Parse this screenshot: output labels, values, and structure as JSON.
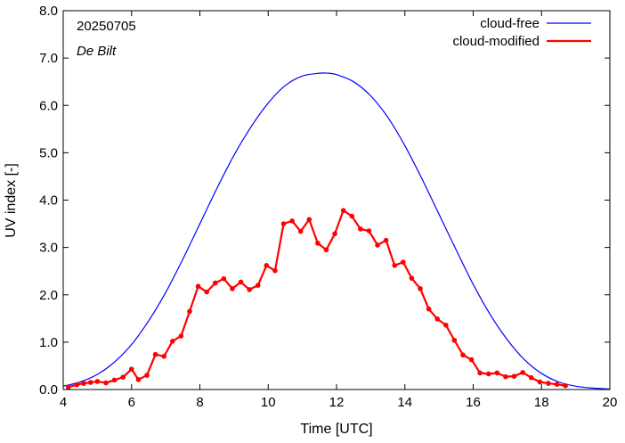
{
  "chart_data": {
    "type": "line",
    "date_label": "20250705",
    "location_label": "De Bilt",
    "xlabel": "Time  [UTC]",
    "ylabel": "UV index  [-]",
    "xlim": [
      4,
      20
    ],
    "ylim": [
      0,
      8
    ],
    "x_ticks": [
      "4",
      "6",
      "8",
      "10",
      "12",
      "14",
      "16",
      "18",
      "20"
    ],
    "y_ticks": [
      "0.0",
      "1.0",
      "2.0",
      "3.0",
      "4.0",
      "5.0",
      "6.0",
      "7.0",
      "8.0"
    ],
    "legend_position": "top-right",
    "series": [
      {
        "name": "cloud-free",
        "color": "#0000ff",
        "marker": "none",
        "x": [
          4.0,
          4.5,
          5.0,
          5.5,
          6.0,
          6.5,
          7.0,
          7.5,
          8.0,
          8.5,
          9.0,
          9.5,
          10.0,
          10.5,
          11.0,
          11.5,
          11.75,
          12.0,
          12.5,
          13.0,
          13.5,
          14.0,
          14.5,
          15.0,
          15.5,
          16.0,
          16.5,
          17.0,
          17.5,
          18.0,
          18.5,
          19.0,
          19.5,
          20.0
        ],
        "y": [
          0.07,
          0.16,
          0.32,
          0.58,
          0.95,
          1.45,
          2.05,
          2.75,
          3.5,
          4.25,
          4.95,
          5.55,
          6.05,
          6.42,
          6.62,
          6.68,
          6.68,
          6.65,
          6.5,
          6.2,
          5.75,
          5.15,
          4.45,
          3.7,
          2.95,
          2.22,
          1.58,
          1.05,
          0.63,
          0.34,
          0.16,
          0.07,
          0.03,
          0.01
        ]
      },
      {
        "name": "cloud-modified",
        "color": "#ff0000",
        "marker": "circle",
        "x": [
          4.15,
          4.4,
          4.6,
          4.8,
          5.0,
          5.25,
          5.5,
          5.75,
          6.0,
          6.2,
          6.45,
          6.7,
          6.95,
          7.2,
          7.45,
          7.7,
          7.95,
          8.2,
          8.45,
          8.7,
          8.95,
          9.2,
          9.45,
          9.7,
          9.95,
          10.2,
          10.45,
          10.7,
          10.95,
          11.2,
          11.45,
          11.7,
          11.95,
          12.2,
          12.45,
          12.7,
          12.95,
          13.2,
          13.45,
          13.7,
          13.95,
          14.2,
          14.45,
          14.7,
          14.95,
          15.2,
          15.45,
          15.7,
          15.95,
          16.2,
          16.45,
          16.7,
          16.95,
          17.2,
          17.45,
          17.7,
          17.95,
          18.2,
          18.45,
          18.7
        ],
        "y": [
          0.05,
          0.1,
          0.13,
          0.15,
          0.17,
          0.14,
          0.2,
          0.26,
          0.43,
          0.21,
          0.3,
          0.74,
          0.7,
          1.02,
          1.13,
          1.65,
          2.18,
          2.06,
          2.25,
          2.34,
          2.13,
          2.27,
          2.11,
          2.2,
          2.62,
          2.51,
          3.5,
          3.56,
          3.34,
          3.59,
          3.09,
          2.95,
          3.29,
          3.78,
          3.66,
          3.39,
          3.35,
          3.05,
          3.15,
          2.62,
          2.69,
          2.35,
          2.13,
          1.7,
          1.49,
          1.36,
          1.04,
          0.73,
          0.63,
          0.35,
          0.33,
          0.35,
          0.27,
          0.28,
          0.36,
          0.25,
          0.16,
          0.13,
          0.11,
          0.08
        ]
      }
    ]
  }
}
